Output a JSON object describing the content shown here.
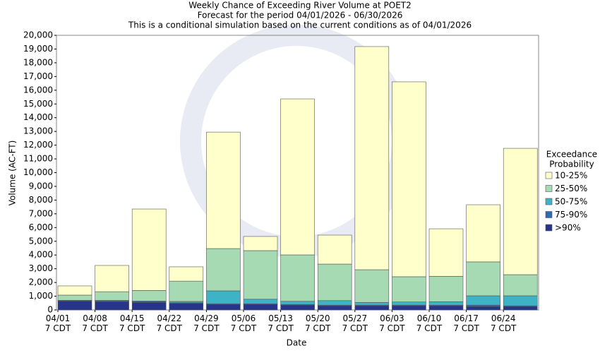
{
  "chart_data": {
    "type": "stacked_bar",
    "title": "Weekly Chance of Exceeding River Volume at POET2",
    "subtitle": "Forecast for the period 04/01/2026 - 06/30/2026",
    "subtitle2": "This is a conditional simulation based on the current conditions as of 04/01/2026",
    "x_label": "Date",
    "y_label": "Volume (AC-FT)",
    "legend_title": [
      "Exceedance",
      "Probability"
    ],
    "legend_position": "right",
    "categories": [
      "04/01 7 CDT",
      "04/08 7 CDT",
      "04/15 7 CDT",
      "04/22 7 CDT",
      "04/29 7 CDT",
      "05/06 7 CDT",
      "05/13 7 CDT",
      "05/20 7 CDT",
      "05/27 7 CDT",
      "06/03 7 CDT",
      "06/10 7 CDT",
      "06/17 7 CDT",
      "06/24 7 CDT"
    ],
    "series": [
      {
        "name": ">90%",
        "color": "#27348b",
        "values": [
          650,
          600,
          550,
          480,
          400,
          400,
          350,
          300,
          300,
          300,
          300,
          250,
          250
        ]
      },
      {
        "name": "75-90%",
        "color": "#2f6db3",
        "values": [
          30,
          50,
          50,
          40,
          50,
          50,
          50,
          50,
          50,
          50,
          50,
          100,
          50
        ]
      },
      {
        "name": "50-75%",
        "color": "#3fb3c6",
        "values": [
          20,
          50,
          50,
          100,
          940,
          330,
          230,
          330,
          200,
          230,
          250,
          680,
          730
        ]
      },
      {
        "name": "25-50%",
        "color": "#a5dab3",
        "values": [
          380,
          630,
          770,
          1480,
          3080,
          3540,
          3380,
          2660,
          2380,
          1840,
          1850,
          2470,
          1540
        ]
      },
      {
        "name": "10-25%",
        "color": "#ffffcc",
        "values": [
          670,
          1910,
          5930,
          1040,
          8480,
          1030,
          11360,
          2110,
          16250,
          14190,
          3460,
          4160,
          9200
        ]
      }
    ],
    "ylim": [
      0,
      20000
    ],
    "yticks": [
      0,
      {
        "value": 1000,
        "label": "1,000"
      },
      {
        "value": 2000,
        "label": "2,000"
      },
      {
        "value": 3000,
        "label": "3,000"
      },
      {
        "value": 4000,
        "label": "4,000"
      },
      {
        "value": 5000,
        "label": "5,000"
      },
      {
        "value": 6000,
        "label": "6,000"
      },
      {
        "value": 7000,
        "label": "7,000"
      },
      {
        "value": 8000,
        "label": "8,000"
      },
      {
        "value": 9000,
        "label": "9,000"
      },
      {
        "value": 10000,
        "label": "10,000"
      },
      {
        "value": 11000,
        "label": "11,000"
      },
      {
        "value": 12000,
        "label": "12,000"
      },
      {
        "value": 13000,
        "label": "13,000"
      },
      {
        "value": 14000,
        "label": "14,000"
      },
      {
        "value": 15000,
        "label": "15,000"
      },
      {
        "value": 16000,
        "label": "16,000"
      },
      {
        "value": 17000,
        "label": "17,000"
      },
      {
        "value": 18000,
        "label": "18,000"
      },
      {
        "value": 19000,
        "label": "19,000"
      },
      {
        "value": 20000,
        "label": "20,000"
      }
    ],
    "grid": false
  }
}
